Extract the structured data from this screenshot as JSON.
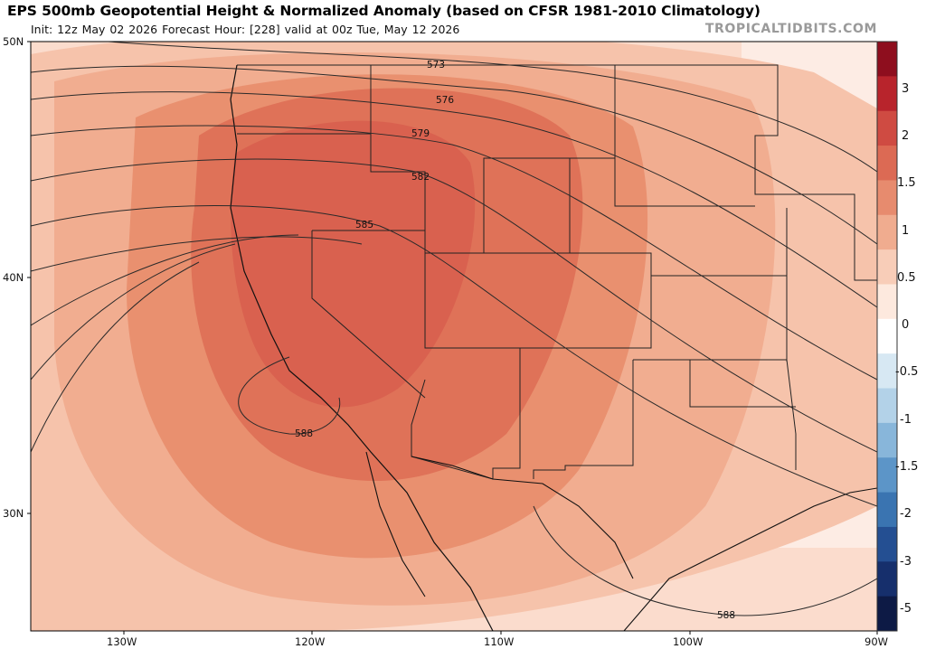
{
  "header": {
    "title": "EPS 500mb Geopotential Height & Normalized Anomaly (based on CFSR 1981-2010 Climatology)",
    "subtitle": "Init: 12z May 02 2026   Forecast Hour: [228]   valid at 00z Tue, May 12 2026",
    "brand": "TROPICALTIDBITS.COM"
  },
  "axes": {
    "lat_labels": [
      "50N",
      "40N",
      "30N"
    ],
    "lon_labels": [
      "130W",
      "120W",
      "110W",
      "100W",
      "90W"
    ]
  },
  "contours": {
    "labels": [
      "573",
      "576",
      "579",
      "582",
      "585",
      "588",
      "588"
    ]
  },
  "colorbar": {
    "labels": [
      "3",
      "2",
      "1.5",
      "1",
      "0.5",
      "0",
      "-0.5",
      "-1",
      "-1.5",
      "-2",
      "-3",
      "-5"
    ],
    "colors": [
      "#8e0e1e",
      "#b8242c",
      "#cf4b42",
      "#dc6a54",
      "#e78b6e",
      "#f0ac8f",
      "#f8cdb8",
      "#fde9de",
      "#ffffff",
      "#d7e8f3",
      "#b3d2e8",
      "#88b6da",
      "#5c95c8",
      "#3a74b1",
      "#244f92",
      "#162f6c",
      "#0d1a45"
    ]
  },
  "colors": {
    "anomaly_peak": "#d9614f",
    "background_anomaly": "#f6c9b4",
    "contour_line": "#2a2a2a"
  }
}
